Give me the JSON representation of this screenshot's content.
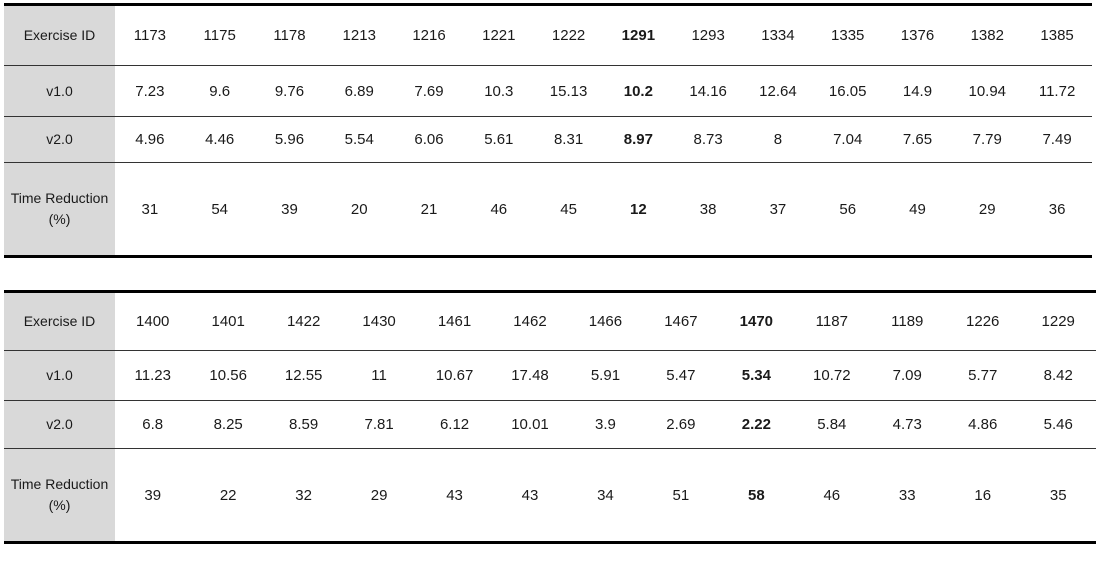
{
  "tables": [
    {
      "row_headers": [
        "Exercise ID",
        "v1.0",
        "v2.0",
        "Time Reduction (%)"
      ],
      "highlight_column": 7,
      "columns": [
        {
          "id": "1173",
          "v1": "7.23",
          "v2": "4.96",
          "reduction": "31"
        },
        {
          "id": "1175",
          "v1": "9.6",
          "v2": "4.46",
          "reduction": "54"
        },
        {
          "id": "1178",
          "v1": "9.76",
          "v2": "5.96",
          "reduction": "39"
        },
        {
          "id": "1213",
          "v1": "6.89",
          "v2": "5.54",
          "reduction": "20"
        },
        {
          "id": "1216",
          "v1": "7.69",
          "v2": "6.06",
          "reduction": "21"
        },
        {
          "id": "1221",
          "v1": "10.3",
          "v2": "5.61",
          "reduction": "46"
        },
        {
          "id": "1222",
          "v1": "15.13",
          "v2": "8.31",
          "reduction": "45"
        },
        {
          "id": "1291",
          "v1": "10.2",
          "v2": "8.97",
          "reduction": "12"
        },
        {
          "id": "1293",
          "v1": "14.16",
          "v2": "8.73",
          "reduction": "38"
        },
        {
          "id": "1334",
          "v1": "12.64",
          "v2": "8",
          "reduction": "37"
        },
        {
          "id": "1335",
          "v1": "16.05",
          "v2": "7.04",
          "reduction": "56"
        },
        {
          "id": "1376",
          "v1": "14.9",
          "v2": "7.65",
          "reduction": "49"
        },
        {
          "id": "1382",
          "v1": "10.94",
          "v2": "7.79",
          "reduction": "29"
        },
        {
          "id": "1385",
          "v1": "11.72",
          "v2": "7.49",
          "reduction": "36"
        }
      ]
    },
    {
      "row_headers": [
        "Exercise ID",
        "v1.0",
        "v2.0",
        "Time Reduction (%)"
      ],
      "highlight_column": 8,
      "columns": [
        {
          "id": "1400",
          "v1": "11.23",
          "v2": "6.8",
          "reduction": "39"
        },
        {
          "id": "1401",
          "v1": "10.56",
          "v2": "8.25",
          "reduction": "22"
        },
        {
          "id": "1422",
          "v1": "12.55",
          "v2": "8.59",
          "reduction": "32"
        },
        {
          "id": "1430",
          "v1": "11",
          "v2": "7.81",
          "reduction": "29"
        },
        {
          "id": "1461",
          "v1": "10.67",
          "v2": "6.12",
          "reduction": "43"
        },
        {
          "id": "1462",
          "v1": "17.48",
          "v2": "10.01",
          "reduction": "43"
        },
        {
          "id": "1466",
          "v1": "5.91",
          "v2": "3.9",
          "reduction": "34"
        },
        {
          "id": "1467",
          "v1": "5.47",
          "v2": "2.69",
          "reduction": "51"
        },
        {
          "id": "1470",
          "v1": "5.34",
          "v2": "2.22",
          "reduction": "58"
        },
        {
          "id": "1187",
          "v1": "10.72",
          "v2": "5.84",
          "reduction": "46"
        },
        {
          "id": "1189",
          "v1": "7.09",
          "v2": "4.73",
          "reduction": "33"
        },
        {
          "id": "1226",
          "v1": "5.77",
          "v2": "4.86",
          "reduction": "16"
        },
        {
          "id": "1229",
          "v1": "8.42",
          "v2": "5.46",
          "reduction": "35"
        }
      ]
    }
  ]
}
